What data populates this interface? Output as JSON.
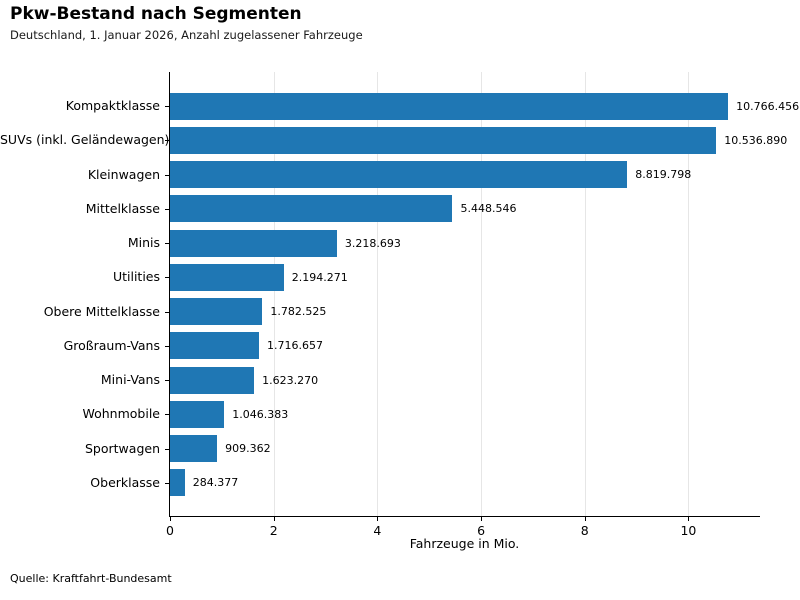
{
  "header": {
    "title": "Pkw-Bestand nach Segmenten",
    "subtitle": "Deutschland, 1. Januar 2026, Anzahl zugelassener Fahrzeuge"
  },
  "footer": {
    "source": "Quelle: Kraftfahrt-Bundesamt"
  },
  "colors": {
    "bar": "#1f77b4",
    "grid": "#e6e6e6",
    "spine": "#000000",
    "text": "#000000"
  },
  "chart_data": {
    "type": "bar",
    "orientation": "horizontal",
    "title": "Pkw-Bestand nach Segmenten",
    "subtitle": "Deutschland, 1. Januar 2026, Anzahl zugelassener Fahrzeuge",
    "xlabel": "Fahrzeuge in Mio.",
    "ylabel": "",
    "categories": [
      "Kompaktklasse",
      "SUVs (inkl. Geländewagen)",
      "Kleinwagen",
      "Mittelklasse",
      "Minis",
      "Utilities",
      "Obere Mittelklasse",
      "Großraum-Vans",
      "Mini-Vans",
      "Wohnmobile",
      "Sportwagen",
      "Oberklasse"
    ],
    "values": [
      10766456,
      10536890,
      8819798,
      5448546,
      3218693,
      2194271,
      1782525,
      1716657,
      1623270,
      1046383,
      909362,
      284377
    ],
    "value_labels": [
      "10.766.456",
      "10.536.890",
      "8.819.798",
      "5.448.546",
      "3.218.693",
      "2.194.271",
      "1.782.525",
      "1.716.657",
      "1.623.270",
      "1.046.383",
      "909.362",
      "284.377"
    ],
    "x_ticks": [
      0,
      2,
      4,
      6,
      8,
      10
    ],
    "x_tick_labels": [
      "0",
      "2",
      "4",
      "6",
      "8",
      "10"
    ],
    "xlim": [
      0,
      11.4
    ],
    "unit_divisor": 1000000,
    "grid": "vertical",
    "legend": "none",
    "source": "Quelle: Kraftfahrt-Bundesamt"
  }
}
